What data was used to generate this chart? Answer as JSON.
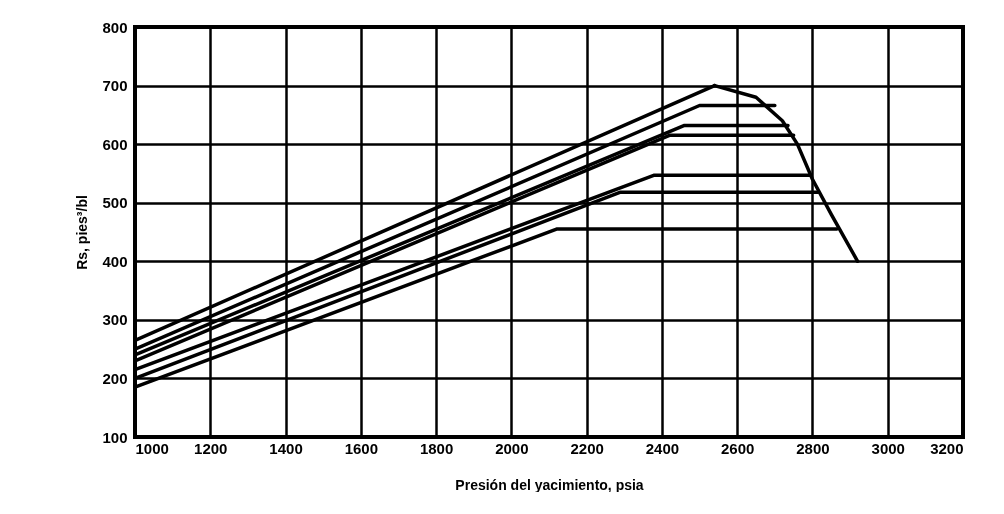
{
  "chart_data": {
    "type": "line",
    "xlabel": "Presión del yacimiento, psia",
    "ylabel": "Rs, pies³/bl",
    "xlim": [
      1000,
      3200
    ],
    "ylim": [
      100,
      800
    ],
    "xticks": [
      1000,
      1200,
      1400,
      1600,
      1800,
      2000,
      2200,
      2400,
      2600,
      2800,
      3000,
      3200
    ],
    "yticks": [
      100,
      200,
      300,
      400,
      500,
      600,
      700,
      800
    ],
    "grid": true,
    "series": [
      {
        "color": "#000000",
        "x": [
          1000,
          2540
        ],
        "values": [
          265,
          700
        ]
      },
      {
        "color": "#000000",
        "x": [
          1000,
          2500,
          2700
        ],
        "values": [
          250,
          666,
          666
        ]
      },
      {
        "color": "#000000",
        "x": [
          1000,
          2460,
          2735
        ],
        "values": [
          240,
          632,
          632
        ]
      },
      {
        "color": "#000000",
        "x": [
          1000,
          2420,
          2750
        ],
        "values": [
          230,
          615,
          615
        ]
      },
      {
        "color": "#000000",
        "x": [
          1000,
          2380,
          2795
        ],
        "values": [
          215,
          547,
          547
        ]
      },
      {
        "color": "#000000",
        "x": [
          1000,
          2290,
          2815
        ],
        "values": [
          200,
          518,
          518
        ]
      },
      {
        "color": "#000000",
        "x": [
          1000,
          2120,
          2865
        ],
        "values": [
          185,
          455,
          455
        ]
      },
      {
        "color": "#000000",
        "x": [
          2540,
          2650,
          2720,
          2760,
          2800,
          2850,
          2920
        ],
        "values": [
          700,
          680,
          640,
          600,
          540,
          480,
          400
        ]
      }
    ]
  }
}
